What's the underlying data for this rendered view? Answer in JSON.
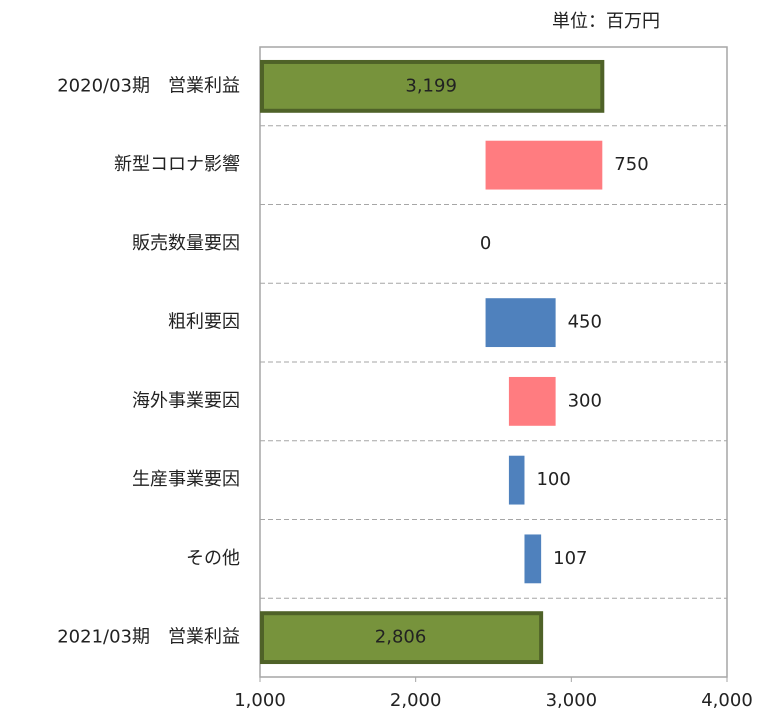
{
  "chart_data": {
    "type": "waterfall",
    "unit_note": "単位：百万円",
    "categories": [
      "2020/03期　営業利益",
      "新型コロナ影響",
      "販売数量要因",
      "粗利要因",
      "海外事業要因",
      "生産事業要因",
      "その他",
      "2021/03期　営業利益"
    ],
    "values": [
      3199,
      -750,
      0,
      450,
      -300,
      100,
      107,
      2806
    ],
    "value_labels": [
      "3,199",
      "750",
      "0",
      "450",
      "300",
      "100",
      "107",
      "2,806"
    ],
    "is_total": [
      true,
      false,
      false,
      false,
      false,
      false,
      false,
      true
    ],
    "colors": {
      "total": "#77933c",
      "total_border": "#4f6228",
      "increase": "#4f81bd",
      "decrease": "#ff7c80"
    },
    "xlim": [
      1000,
      4000
    ],
    "xticks": [
      {
        "value": 1000,
        "label": "1,000"
      },
      {
        "value": 2000,
        "label": "2,000"
      },
      {
        "value": 3000,
        "label": "3,000"
      },
      {
        "value": 4000,
        "label": "4,000"
      }
    ],
    "grid": true
  }
}
